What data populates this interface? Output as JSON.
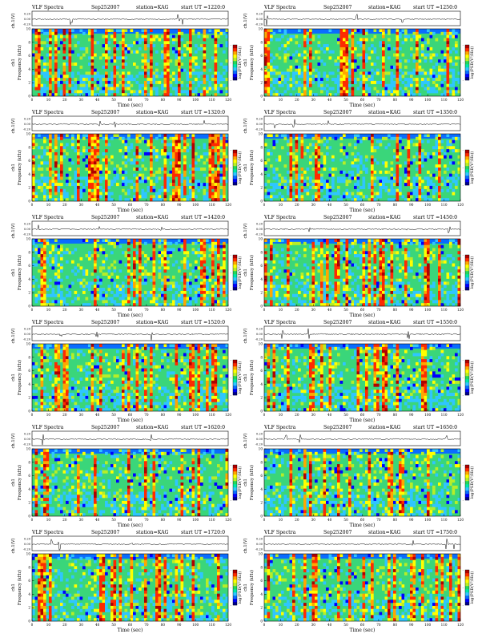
{
  "colors": {
    "scale": [
      "#00008b",
      "#0000ff",
      "#0a6cff",
      "#2fc6ff",
      "#00e8a8",
      "#24d85a",
      "#b6ee28",
      "#ffff00",
      "#ffa600",
      "#ff2a00",
      "#b00000"
    ],
    "panel_background": "#3ad67a"
  },
  "chart_data": [
    {
      "type": "heatmap",
      "title": "VLF Spectra",
      "date": "Sep252007",
      "station": "station=KAG",
      "start": "start  UT =1220:0",
      "ch_label": "ch.1(V)",
      "ch_ticks": [
        "0.20",
        "0.00",
        "-0.20"
      ],
      "freq_label": "Frequency (kHz)",
      "freq_ticks": [
        "0",
        "2",
        "4",
        "6",
        "8",
        "10"
      ],
      "channel": "ch1",
      "xlabel": "Time (sec)",
      "x_ticks": [
        "0",
        "10",
        "20",
        "30",
        "40",
        "50",
        "60",
        "70",
        "80",
        "90",
        "100",
        "110",
        "120"
      ],
      "cbar_label": "log(PSD(V²/Hz))",
      "cbar_ticks": [
        "-",
        "-",
        "-"
      ],
      "xlim": [
        0,
        120
      ],
      "ylim": [
        0,
        10
      ]
    },
    {
      "type": "heatmap",
      "title": "VLF Spectra",
      "date": "Sep252007",
      "station": "station=KAG",
      "start": "start  UT =1250:0",
      "ch_label": "ch.1(V)",
      "ch_ticks": [
        "0.20",
        "0.00",
        "-0.20"
      ],
      "freq_label": "Frequency (kHz)",
      "freq_ticks": [
        "0",
        "2",
        "4",
        "6",
        "8",
        "10"
      ],
      "channel": "ch1",
      "xlabel": "Time (sec)",
      "x_ticks": [
        "0",
        "10",
        "20",
        "30",
        "40",
        "50",
        "60",
        "70",
        "80",
        "90",
        "100",
        "110",
        "120"
      ],
      "cbar_label": "log(PSD(V²/Hz))",
      "cbar_ticks": [
        "-",
        "-",
        "-"
      ],
      "xlim": [
        0,
        120
      ],
      "ylim": [
        0,
        10
      ]
    },
    {
      "type": "heatmap",
      "title": "VLF Spectra",
      "date": "Sep252007",
      "station": "station=KAG",
      "start": "start  UT =1320:0",
      "ch_label": "ch.1(V)",
      "ch_ticks": [
        "0.20",
        "0.00",
        "-0.20"
      ],
      "freq_label": "Frequency (kHz)",
      "freq_ticks": [
        "0",
        "2",
        "4",
        "6",
        "8",
        "10"
      ],
      "channel": "ch1",
      "xlabel": "Time (sec)",
      "x_ticks": [
        "0",
        "10",
        "20",
        "30",
        "40",
        "50",
        "60",
        "70",
        "80",
        "90",
        "100",
        "110",
        "120"
      ],
      "cbar_label": "log(PSD(V²/Hz))",
      "cbar_ticks": [
        "-",
        "-",
        "-"
      ],
      "xlim": [
        0,
        120
      ],
      "ylim": [
        0,
        10
      ]
    },
    {
      "type": "heatmap",
      "title": "VLF Spectra",
      "date": "Sep252007",
      "station": "station=KAG",
      "start": "start  UT =1350:0",
      "ch_label": "ch.1(V)",
      "ch_ticks": [
        "0.20",
        "0.00",
        "-0.20"
      ],
      "freq_label": "Frequency (kHz)",
      "freq_ticks": [
        "0",
        "2",
        "4",
        "6",
        "8",
        "10"
      ],
      "channel": "ch1",
      "xlabel": "Time (sec)",
      "x_ticks": [
        "0",
        "10",
        "20",
        "30",
        "40",
        "50",
        "60",
        "70",
        "80",
        "90",
        "100",
        "110",
        "120"
      ],
      "cbar_label": "log(PSD(V²/Hz))",
      "cbar_ticks": [
        "-",
        "-",
        "-"
      ],
      "xlim": [
        0,
        120
      ],
      "ylim": [
        0,
        10
      ]
    },
    {
      "type": "heatmap",
      "title": "VLF Spectra",
      "date": "Sep252007",
      "station": "station=KAG",
      "start": "start  UT =1420:0",
      "ch_label": "ch.1(V)",
      "ch_ticks": [
        "0.20",
        "0.00",
        "-0.20"
      ],
      "freq_label": "Frequency (kHz)",
      "freq_ticks": [
        "0",
        "2",
        "4",
        "6",
        "8",
        "10"
      ],
      "channel": "ch1",
      "xlabel": "Time (sec)",
      "x_ticks": [
        "0",
        "10",
        "20",
        "30",
        "40",
        "50",
        "60",
        "70",
        "80",
        "90",
        "100",
        "110",
        "120"
      ],
      "cbar_label": "log(PSD(V²/Hz))",
      "cbar_ticks": [
        "-",
        "-",
        "-"
      ],
      "xlim": [
        0,
        120
      ],
      "ylim": [
        0,
        10
      ]
    },
    {
      "type": "heatmap",
      "title": "VLF Spectra",
      "date": "Sep252007",
      "station": "station=KAG",
      "start": "start  UT =1450:0",
      "ch_label": "ch.1(V)",
      "ch_ticks": [
        "0.20",
        "0.00",
        "-0.20"
      ],
      "freq_label": "Frequency (kHz)",
      "freq_ticks": [
        "0",
        "2",
        "4",
        "6",
        "8",
        "10"
      ],
      "channel": "ch1",
      "xlabel": "Time (sec)",
      "x_ticks": [
        "0",
        "10",
        "20",
        "30",
        "40",
        "50",
        "60",
        "70",
        "80",
        "90",
        "100",
        "110",
        "120"
      ],
      "cbar_label": "log(PSD(V²/Hz))",
      "cbar_ticks": [
        "-",
        "-",
        "-"
      ],
      "xlim": [
        0,
        120
      ],
      "ylim": [
        0,
        10
      ]
    },
    {
      "type": "heatmap",
      "title": "VLF Spectra",
      "date": "Sep252007",
      "station": "station=KAG",
      "start": "start  UT =1520:0",
      "ch_label": "ch.1(V)",
      "ch_ticks": [
        "0.20",
        "0.00",
        "-0.20"
      ],
      "freq_label": "Frequency (kHz)",
      "freq_ticks": [
        "0",
        "2",
        "4",
        "6",
        "8",
        "10"
      ],
      "channel": "ch1",
      "xlabel": "Time (sec)",
      "x_ticks": [
        "0",
        "10",
        "20",
        "30",
        "40",
        "50",
        "60",
        "70",
        "80",
        "90",
        "100",
        "110",
        "120"
      ],
      "cbar_label": "log(PSD(V²/Hz))",
      "cbar_ticks": [
        "-",
        "-",
        "-"
      ],
      "xlim": [
        0,
        120
      ],
      "ylim": [
        0,
        10
      ]
    },
    {
      "type": "heatmap",
      "title": "VLF Spectra",
      "date": "Sep252007",
      "station": "station=KAG",
      "start": "start  UT =1550:0",
      "ch_label": "ch.1(V)",
      "ch_ticks": [
        "0.20",
        "0.00",
        "-0.20"
      ],
      "freq_label": "Frequency (kHz)",
      "freq_ticks": [
        "0",
        "2",
        "4",
        "6",
        "8",
        "10"
      ],
      "channel": "ch1",
      "xlabel": "Time (sec)",
      "x_ticks": [
        "0",
        "10",
        "20",
        "30",
        "40",
        "50",
        "60",
        "70",
        "80",
        "90",
        "100",
        "110",
        "120"
      ],
      "cbar_label": "log(PSD(V²/Hz))",
      "cbar_ticks": [
        "-",
        "-",
        "-"
      ],
      "xlim": [
        0,
        120
      ],
      "ylim": [
        0,
        10
      ]
    },
    {
      "type": "heatmap",
      "title": "VLF Spectra",
      "date": "Sep252007",
      "station": "station=KAG",
      "start": "start  UT =1620:0",
      "ch_label": "ch.1(V)",
      "ch_ticks": [
        "0.20",
        "0.00",
        "-0.20"
      ],
      "freq_label": "Frequency (kHz)",
      "freq_ticks": [
        "0",
        "2",
        "4",
        "6",
        "8",
        "10"
      ],
      "channel": "ch1",
      "xlabel": "Time (sec)",
      "x_ticks": [
        "0",
        "10",
        "20",
        "30",
        "40",
        "50",
        "60",
        "70",
        "80",
        "90",
        "100",
        "110",
        "120"
      ],
      "cbar_label": "log(PSD(V²/Hz))",
      "cbar_ticks": [
        "-",
        "-",
        "-"
      ],
      "xlim": [
        0,
        120
      ],
      "ylim": [
        0,
        10
      ]
    },
    {
      "type": "heatmap",
      "title": "VLF Spectra",
      "date": "Sep252007",
      "station": "station=KAG",
      "start": "start  UT =1650:0",
      "ch_label": "ch.1(V)",
      "ch_ticks": [
        "0.20",
        "0.00",
        "-0.20"
      ],
      "freq_label": "Frequency (kHz)",
      "freq_ticks": [
        "0",
        "2",
        "4",
        "6",
        "8",
        "10"
      ],
      "channel": "ch1",
      "xlabel": "Time (sec)",
      "x_ticks": [
        "0",
        "10",
        "20",
        "30",
        "40",
        "50",
        "60",
        "70",
        "80",
        "90",
        "100",
        "110",
        "120"
      ],
      "cbar_label": "log(PSD(V²/Hz))",
      "cbar_ticks": [
        "-",
        "-",
        "-"
      ],
      "xlim": [
        0,
        120
      ],
      "ylim": [
        0,
        10
      ]
    },
    {
      "type": "heatmap",
      "title": "VLF Spectra",
      "date": "Sep252007",
      "station": "station=KAG",
      "start": "start  UT =1720:0",
      "ch_label": "ch.1(V)",
      "ch_ticks": [
        "0.20",
        "0.00",
        "-0.20"
      ],
      "freq_label": "Frequency (kHz)",
      "freq_ticks": [
        "0",
        "2",
        "4",
        "6",
        "8",
        "10"
      ],
      "channel": "ch1",
      "xlabel": "Time (sec)",
      "x_ticks": [
        "0",
        "10",
        "20",
        "30",
        "40",
        "50",
        "60",
        "70",
        "80",
        "90",
        "100",
        "110",
        "120"
      ],
      "cbar_label": "log(PSD(V²/Hz))",
      "cbar_ticks": [
        "-",
        "-",
        "-"
      ],
      "xlim": [
        0,
        120
      ],
      "ylim": [
        0,
        10
      ]
    },
    {
      "type": "heatmap",
      "title": "VLF Spectra",
      "date": "Sep252007",
      "station": "station=KAG",
      "start": "start  UT =1750:0",
      "ch_label": "ch.1(V)",
      "ch_ticks": [
        "0.20",
        "0.00",
        "-0.20"
      ],
      "freq_label": "Frequency (kHz)",
      "freq_ticks": [
        "0",
        "2",
        "4",
        "6",
        "8",
        "10"
      ],
      "channel": "ch1",
      "xlabel": "Time (sec)",
      "x_ticks": [
        "0",
        "10",
        "20",
        "30",
        "40",
        "50",
        "60",
        "70",
        "80",
        "90",
        "100",
        "110",
        "120"
      ],
      "cbar_label": "log(PSD(V²/Hz))",
      "cbar_ticks": [
        "-",
        "-",
        "-"
      ],
      "xlim": [
        0,
        120
      ],
      "ylim": [
        0,
        10
      ]
    }
  ]
}
